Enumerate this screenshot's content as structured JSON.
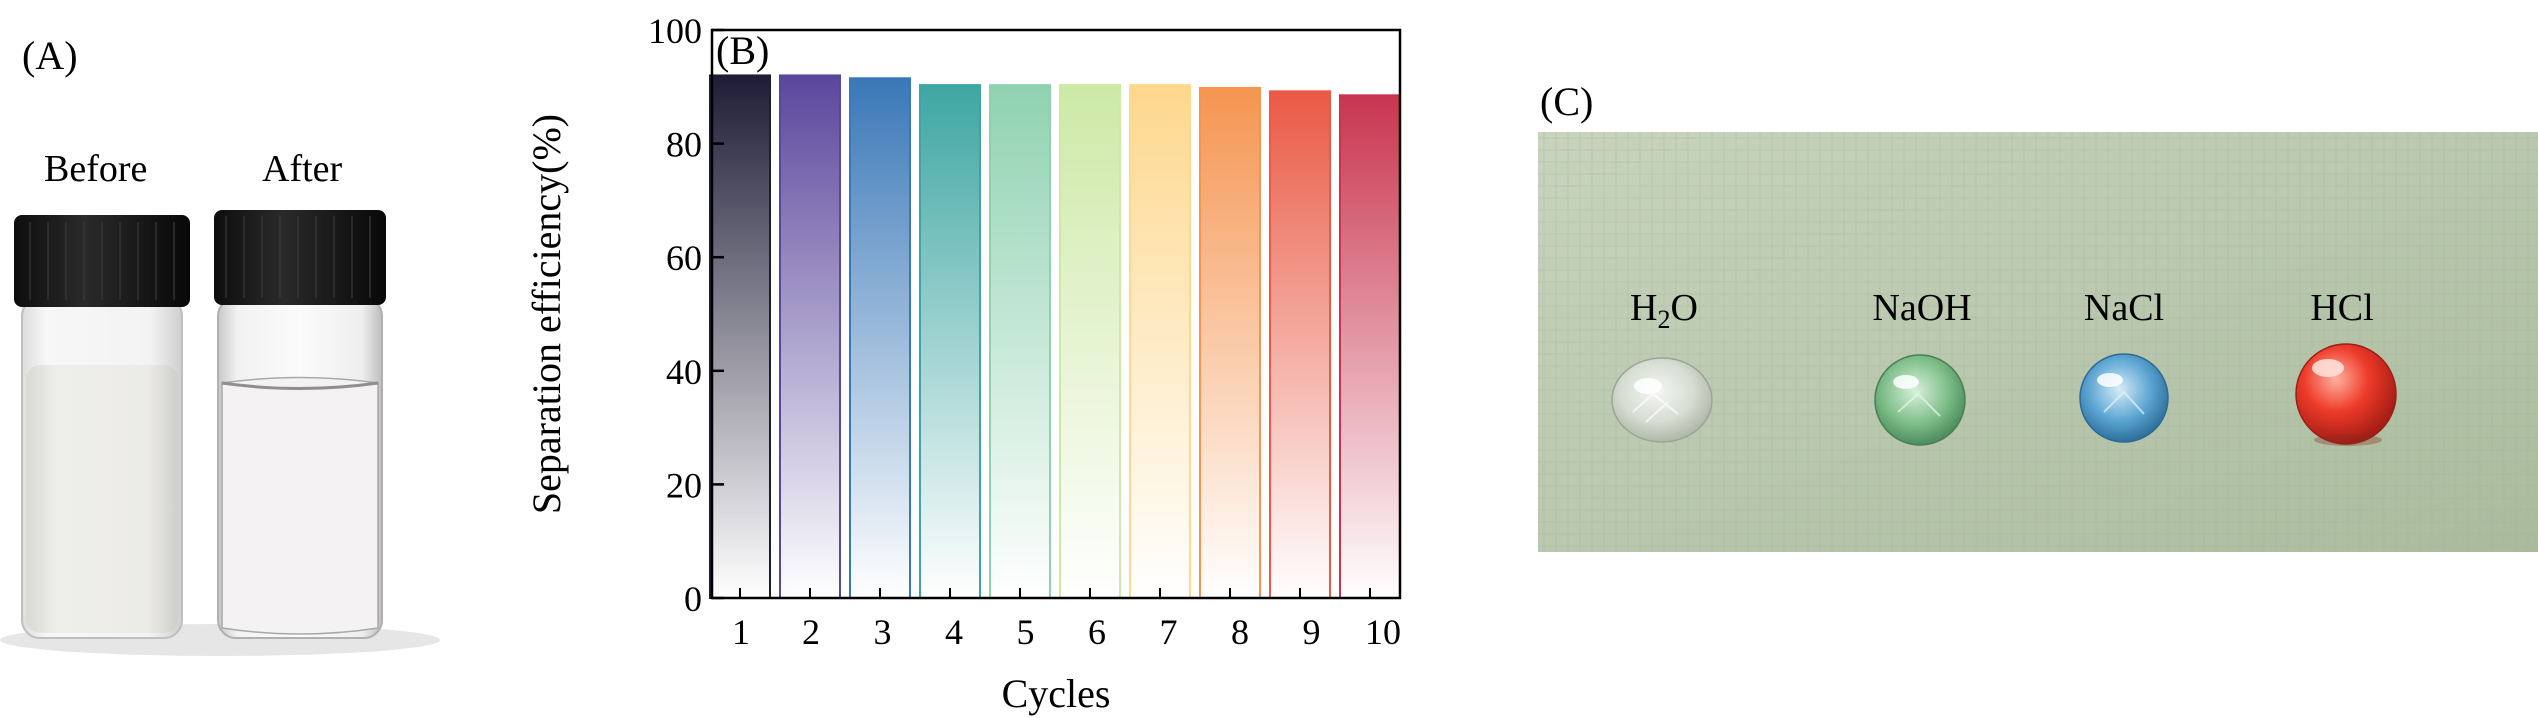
{
  "panels": {
    "a": {
      "label": "(A)",
      "before_label": "Before",
      "after_label": "After"
    },
    "b": {
      "label": "(B)"
    },
    "c": {
      "label": "(C)",
      "drops": [
        {
          "name": "H",
          "sub": "2",
          "tail": "O",
          "color": "#dfe6e0"
        },
        {
          "name": "NaOH",
          "sub": "",
          "tail": "",
          "color": "#6fb07c"
        },
        {
          "name": "NaCl",
          "sub": "",
          "tail": "",
          "color": "#4d98c9"
        },
        {
          "name": "HCl",
          "sub": "",
          "tail": "",
          "color": "#e23a2c"
        }
      ]
    }
  },
  "chart_data": {
    "type": "bar",
    "title": "",
    "xlabel": "Cycles",
    "ylabel": "Separation efficiency(%)",
    "ylim": [
      0,
      100
    ],
    "yticks": [
      0,
      20,
      40,
      60,
      80,
      100
    ],
    "categories": [
      "1",
      "2",
      "3",
      "4",
      "5",
      "6",
      "7",
      "8",
      "9",
      "10"
    ],
    "values": [
      92.0,
      92.0,
      91.5,
      90.3,
      90.3,
      90.3,
      90.3,
      89.8,
      89.2,
      88.5
    ],
    "colors": [
      "#1f1d36",
      "#5a479c",
      "#3a78b8",
      "#3ea6a2",
      "#8fd2b0",
      "#cde9a6",
      "#fdd88d",
      "#f59551",
      "#ea5a45",
      "#c9354f"
    ],
    "grid": false
  }
}
